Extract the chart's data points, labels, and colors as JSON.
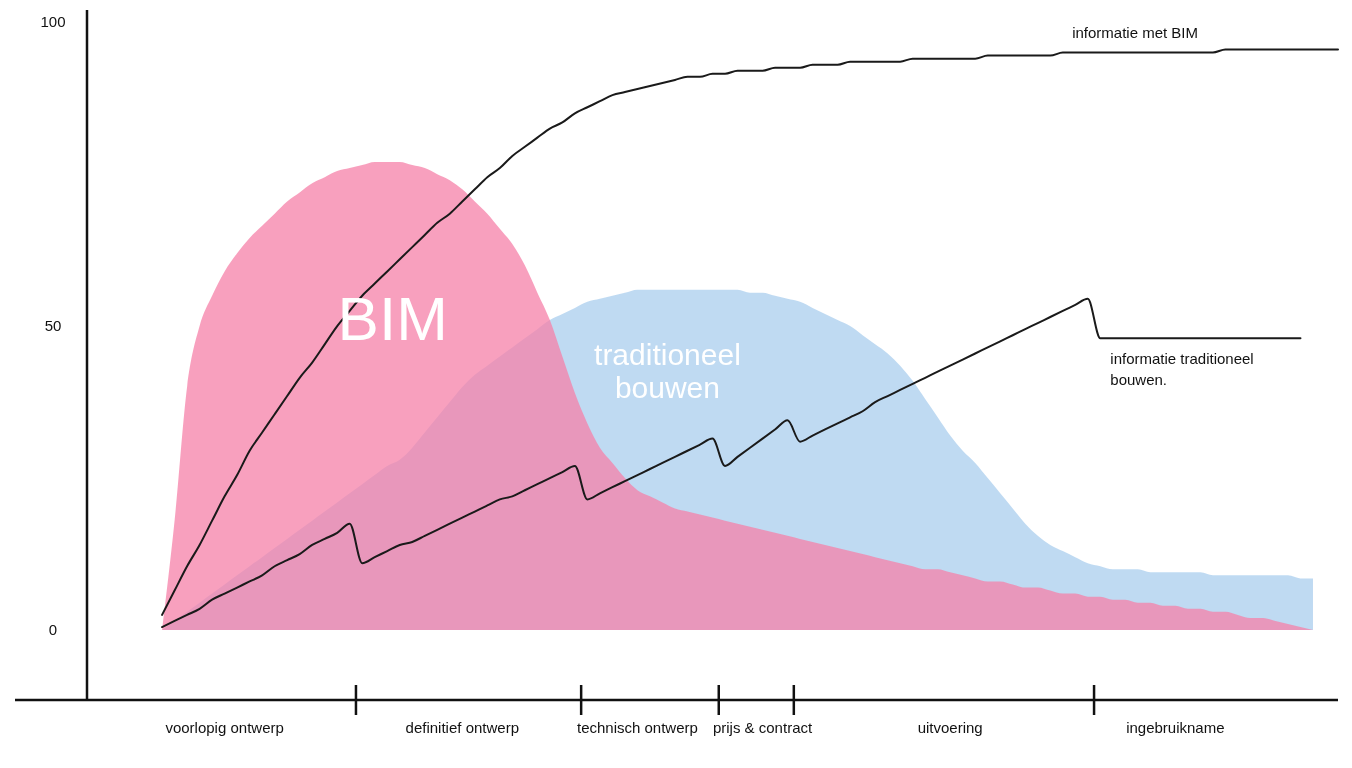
{
  "chart_data": {
    "type": "area",
    "ylim": [
      -11.5,
      102
    ],
    "yticks": [
      0,
      50,
      100
    ],
    "categories": [
      null,
      null,
      null,
      null,
      null,
      null,
      null,
      null,
      null,
      null,
      null,
      "voorlopig ontwerp",
      null,
      null,
      null,
      null,
      null,
      null,
      null,
      null,
      null,
      null,
      null,
      null,
      null,
      null,
      null,
      null,
      null,
      null,
      "definitief ontwerp",
      null,
      null,
      null,
      null,
      null,
      null,
      null,
      null,
      null,
      null,
      null,
      null,
      null,
      "technisch ontwerp",
      null,
      null,
      null,
      null,
      null,
      null,
      null,
      null,
      null,
      "prijs & contract",
      null,
      null,
      null,
      null,
      null,
      null,
      null,
      null,
      null,
      null,
      null,
      null,
      null,
      null,
      "uitvoering",
      null,
      null,
      null,
      null,
      null,
      null,
      null,
      null,
      null,
      null,
      null,
      null,
      null,
      null,
      null,
      null,
      null,
      "ingebruikname",
      null,
      null,
      null,
      null,
      null,
      null,
      null,
      null,
      null,
      null,
      null,
      null,
      null
    ],
    "grid": false,
    "legend": false,
    "series": [
      {
        "name": "traditioneel bouwen",
        "color": "#a9cdee",
        "values": [
          null,
          null,
          null,
          null,
          null,
          null,
          0,
          1.5,
          3,
          4.5,
          6,
          7.5,
          9,
          10.5,
          12,
          13.5,
          15,
          16.5,
          18,
          19.5,
          21,
          22.5,
          24,
          25.5,
          27,
          28,
          30,
          32.5,
          35,
          37.5,
          40,
          42,
          43.5,
          45,
          46.5,
          48,
          49.5,
          51,
          52,
          53,
          54,
          54.5,
          55,
          55.5,
          56,
          56,
          56,
          56,
          56,
          56,
          56,
          56,
          56,
          55.5,
          55.5,
          55,
          54.5,
          54,
          53,
          52,
          51,
          50,
          48.5,
          47,
          45.5,
          43.5,
          41,
          38,
          35,
          32,
          29.5,
          27.5,
          25,
          22.5,
          20,
          17.5,
          15.5,
          14,
          13,
          12,
          11,
          10.5,
          10,
          10,
          10,
          9.5,
          9.5,
          9.5,
          9.5,
          9.5,
          9,
          9,
          9,
          9,
          9,
          9,
          9,
          8.5,
          8.5,
          null,
          null
        ]
      },
      {
        "name": "BIM",
        "color": "#f580a8",
        "values": [
          null,
          null,
          null,
          null,
          null,
          null,
          0,
          18,
          40,
          50,
          55,
          59,
          62,
          64.5,
          66.5,
          68.5,
          70.5,
          72,
          73.5,
          74.5,
          75.5,
          76,
          76.5,
          77,
          77,
          77,
          76.5,
          76,
          75,
          74,
          72.5,
          70.5,
          68.5,
          66,
          63.5,
          60,
          55.5,
          51,
          45,
          39,
          34,
          30,
          27.5,
          25,
          23,
          22,
          21,
          20,
          19.5,
          19,
          18.5,
          18,
          17.5,
          17,
          16.5,
          16,
          15.5,
          15,
          14.5,
          14,
          13.5,
          13,
          12.5,
          12,
          11.5,
          11,
          10.5,
          10,
          10,
          9.5,
          9,
          8.5,
          8,
          8,
          7.5,
          7,
          7,
          6.5,
          6,
          6,
          5.5,
          5.5,
          5,
          5,
          4.5,
          4.5,
          4,
          4,
          3.5,
          3.5,
          3,
          3,
          2.5,
          2,
          2,
          1.5,
          1,
          0.5,
          0,
          null,
          null
        ]
      },
      {
        "name": "informatie met BIM",
        "type": "line",
        "color": "#1a1a1a",
        "values": [
          null,
          null,
          null,
          null,
          null,
          null,
          2.5,
          6.5,
          10.5,
          14,
          18,
          22,
          25.5,
          29.5,
          32.5,
          35.5,
          38.5,
          41.5,
          44,
          47,
          50,
          52.5,
          55,
          57,
          59,
          61,
          63,
          65,
          67,
          68.5,
          70.5,
          72.5,
          74.5,
          76,
          78,
          79.5,
          81,
          82.5,
          83.5,
          85,
          86,
          87,
          88,
          88.5,
          89,
          89.5,
          90,
          90.5,
          91,
          91,
          91.5,
          91.5,
          92,
          92,
          92,
          92.5,
          92.5,
          92.5,
          93,
          93,
          93,
          93.5,
          93.5,
          93.5,
          93.5,
          93.5,
          94,
          94,
          94,
          94,
          94,
          94,
          94.5,
          94.5,
          94.5,
          94.5,
          94.5,
          94.5,
          95,
          95,
          95,
          95,
          95,
          95,
          95,
          95,
          95,
          95,
          95,
          95,
          95,
          95.5,
          95.5,
          95.5,
          95.5,
          95.5,
          95.5,
          95.5,
          95.5,
          95.5,
          95.5
        ]
      },
      {
        "name": "informatie traditioneel bouwen.",
        "type": "line",
        "color": "#1a1a1a",
        "values": [
          null,
          null,
          null,
          null,
          null,
          null,
          0.5,
          1.5,
          2.5,
          3.5,
          5,
          6,
          7,
          8,
          9,
          10.5,
          11.5,
          12.5,
          14,
          15,
          16,
          17.5,
          11,
          12,
          13,
          14,
          14.5,
          15.5,
          16.5,
          17.5,
          18.5,
          19.5,
          20.5,
          21.5,
          22,
          23,
          24,
          25,
          26,
          27,
          21.5,
          22.5,
          23.5,
          24.5,
          25.5,
          26.5,
          27.5,
          28.5,
          29.5,
          30.5,
          31.5,
          27,
          28.5,
          30,
          31.5,
          33,
          34.5,
          31,
          32,
          33,
          34,
          35,
          36,
          37.5,
          38.5,
          39.5,
          40.5,
          41.5,
          42.5,
          43.5,
          44.5,
          45.5,
          46.5,
          47.5,
          48.5,
          49.5,
          50.5,
          51.5,
          52.5,
          53.5,
          54.5,
          48,
          48,
          48,
          48,
          48,
          48,
          48,
          48,
          48,
          48,
          48,
          48,
          48,
          48,
          48,
          48,
          48,
          null,
          null,
          null
        ]
      }
    ]
  }
}
